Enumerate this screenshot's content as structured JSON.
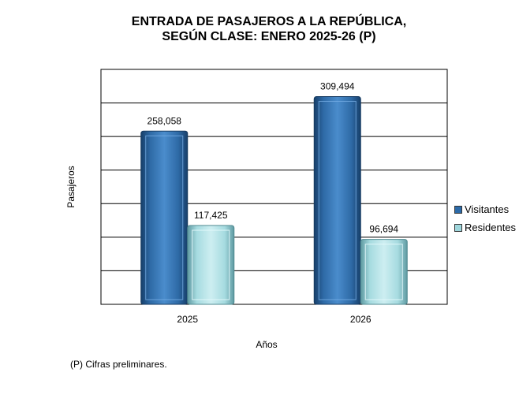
{
  "title_line1": "ENTRADA DE PASAJEROS A LA REPÚBLICA,",
  "title_line2": "SEGÚN CLASE: ENERO 2025-26 (P)",
  "footnote": "(P) Cifras  preliminares.",
  "colors": {
    "visitantes": "#2c6aa8",
    "residentes": "#9ed6dc"
  },
  "chart_data": {
    "type": "bar",
    "categories": [
      "2025",
      "2026"
    ],
    "series": [
      {
        "name": "Visitantes",
        "values": [
          258058,
          309494
        ],
        "labels": [
          "258,058",
          "309,494"
        ]
      },
      {
        "name": "Residentes",
        "values": [
          117425,
          96694
        ],
        "labels": [
          "117,425",
          "96,694"
        ]
      }
    ],
    "xlabel": "Años",
    "ylabel": "Pasajeros",
    "ylim": [
      0,
      350000
    ],
    "grid": true,
    "legend": "right"
  }
}
